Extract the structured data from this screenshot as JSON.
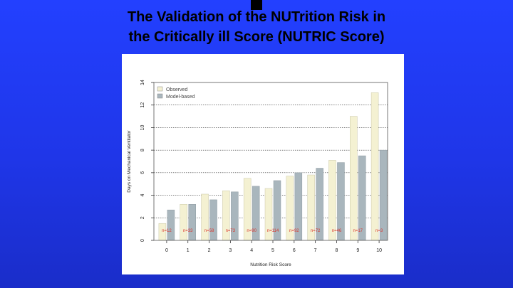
{
  "slide": {
    "title_line1": "The Validation of the NUTrition Risk in",
    "title_line2": "the Critically ill Score (NUTRIC Score)"
  },
  "colors": {
    "background": "#1f36e8",
    "observed": "#f4f1d2",
    "model": "#a9b6bd",
    "counts": "#d9352b"
  },
  "chart_data": {
    "type": "bar",
    "xlabel": "Nutrition Risk Score",
    "ylabel": "Days on Mechanical Ventilator",
    "ylim": [
      0,
      14
    ],
    "yticks": [
      0,
      2,
      4,
      6,
      8,
      10,
      12,
      14
    ],
    "grid": true,
    "legend_position": "top-left",
    "categories": [
      "0",
      "1",
      "2",
      "3",
      "4",
      "5",
      "6",
      "7",
      "8",
      "9",
      "10"
    ],
    "series": [
      {
        "name": "Observed",
        "values": [
          1.5,
          3.2,
          4.1,
          4.4,
          5.5,
          4.6,
          5.7,
          5.8,
          7.1,
          11.0,
          13.1
        ]
      },
      {
        "name": "Model-based",
        "values": [
          2.7,
          3.2,
          3.6,
          4.3,
          4.8,
          5.3,
          6.0,
          6.4,
          6.9,
          7.5,
          8.0
        ]
      }
    ],
    "counts": [
      "n=12",
      "n=33",
      "n=58",
      "n=73",
      "n=90",
      "n=114",
      "n=92",
      "n=72",
      "n=46",
      "n=17",
      "n=3"
    ]
  }
}
